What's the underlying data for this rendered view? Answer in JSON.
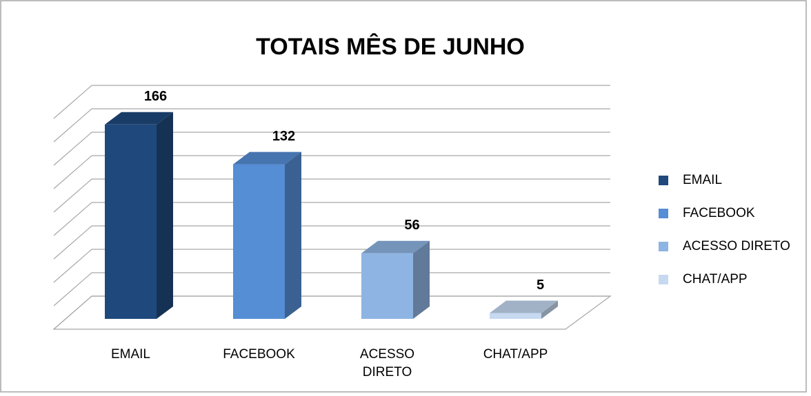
{
  "chart_data": {
    "type": "bar3d",
    "title": "TOTAIS MÊS DE JUNHO",
    "categories": [
      "EMAIL",
      "FACEBOOK",
      "ACESSO DIRETO",
      "CHAT/APP"
    ],
    "values": [
      166,
      132,
      56,
      5
    ],
    "colors": [
      "#1f497d",
      "#558ed5",
      "#8eb4e3",
      "#c6d9f1"
    ],
    "ylim": [
      0,
      180
    ],
    "yticks": [
      0,
      20,
      40,
      60,
      80,
      100,
      120,
      140,
      160,
      180
    ],
    "grid": true,
    "legend": "right"
  }
}
